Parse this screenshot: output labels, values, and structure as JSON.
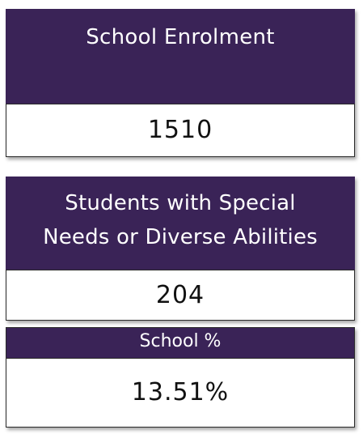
{
  "cards": {
    "enrolment": {
      "label": "School Enrolment",
      "value": "1510"
    },
    "special_needs": {
      "label_line1": "Students with Special",
      "label_line2": "Needs or Diverse Abilities",
      "value": "204"
    },
    "school_percent": {
      "label": "School %",
      "value": "13.51%"
    }
  },
  "colors": {
    "header_bg": "#3a2357",
    "header_text": "#ffffff",
    "value_bg": "#ffffff",
    "value_text": "#111111"
  }
}
